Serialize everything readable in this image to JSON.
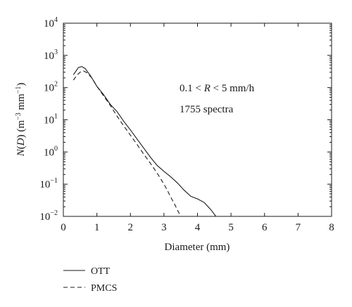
{
  "chart_data": {
    "type": "line",
    "xlabel": "Diameter (mm)",
    "ylabel_parts": {
      "var": "N",
      "open": "(",
      "arg": "D",
      "close": ") (m",
      "exp1": "−3",
      "mid": " mm",
      "exp2": "−1",
      "end": ")"
    },
    "xlim": [
      0,
      8
    ],
    "ylim": [
      0.01,
      10000
    ],
    "yscale": "log",
    "x_ticks": [
      "0",
      "1",
      "2",
      "3",
      "4",
      "5",
      "6",
      "7",
      "8"
    ],
    "y_ticks": [
      {
        "base": "10",
        "exp": "−2"
      },
      {
        "base": "10",
        "exp": "−1"
      },
      {
        "base": "10",
        "exp": "0"
      },
      {
        "base": "10",
        "exp": "1"
      },
      {
        "base": "10",
        "exp": "2"
      },
      {
        "base": "10",
        "exp": "3"
      },
      {
        "base": "10",
        "exp": "4"
      }
    ],
    "grid": false,
    "legend_position": "bottom-left, below plot",
    "annotations": {
      "line1_a": "0.1 < ",
      "line1_var": "R",
      "line1_b": " < 5 mm/h",
      "line2": "1755 spectra"
    },
    "series": [
      {
        "name": "OTT",
        "style": "solid",
        "color": "#1a1a1a",
        "x": [
          0.3,
          0.45,
          0.55,
          0.65,
          0.8,
          1.0,
          1.2,
          1.4,
          1.6,
          1.8,
          2.0,
          2.2,
          2.4,
          2.6,
          2.8,
          3.0,
          3.2,
          3.4,
          3.6,
          3.8,
          4.0,
          4.2,
          4.4,
          4.55
        ],
        "y": [
          250,
          420,
          450,
          390,
          240,
          110,
          60,
          30,
          18,
          9,
          4.8,
          2.5,
          1.3,
          0.68,
          0.38,
          0.25,
          0.17,
          0.11,
          0.065,
          0.042,
          0.035,
          0.027,
          0.016,
          0.01
        ]
      },
      {
        "name": "PMCS",
        "style": "dashed",
        "color": "#1a1a1a",
        "x": [
          0.3,
          0.4,
          0.5,
          0.6,
          0.7,
          0.85,
          1.0,
          1.2,
          1.4,
          1.6,
          1.8,
          2.0,
          2.2,
          2.4,
          2.6,
          2.8,
          3.0,
          3.1,
          3.2,
          3.3,
          3.4,
          3.5
        ],
        "y": [
          170,
          240,
          300,
          330,
          290,
          200,
          110,
          55,
          28,
          13,
          6.5,
          3.3,
          1.7,
          0.85,
          0.44,
          0.22,
          0.1,
          0.065,
          0.04,
          0.026,
          0.016,
          0.01
        ]
      }
    ]
  }
}
